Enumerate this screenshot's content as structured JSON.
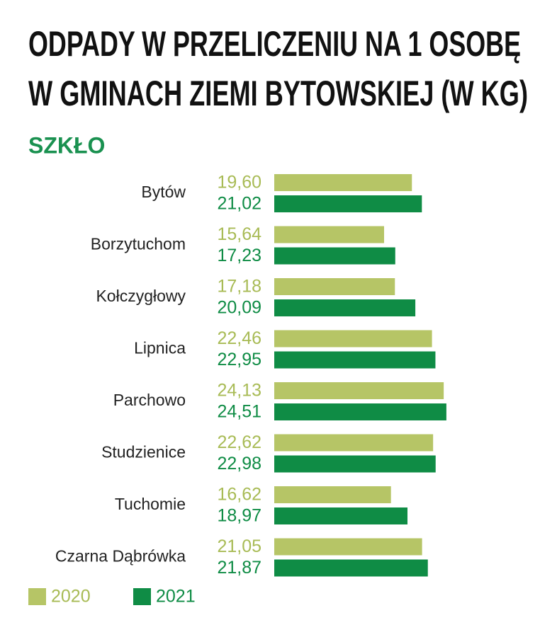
{
  "chart_data": {
    "type": "bar",
    "orientation": "horizontal",
    "title": [
      "ODPADY W PRZELICZENIU NA 1 OSOBĘ",
      "W GMINACH ZIEMI BYTOWSKIEJ (W KG)"
    ],
    "subtitle": "SZKŁO",
    "categories": [
      "Bytów",
      "Borzytuchom",
      "Kołczygłowy",
      "Lipnica",
      "Parchowo",
      "Studzienice",
      "Tuchomie",
      "Czarna Dąbrówka"
    ],
    "series": [
      {
        "name": "2020",
        "color": "#b6c566",
        "label_color": "#a8bb55",
        "values": [
          19.6,
          15.64,
          17.18,
          22.46,
          24.13,
          22.62,
          16.62,
          21.05
        ],
        "value_labels": [
          "19,60",
          "15,64",
          "17,18",
          "22,46",
          "24,13",
          "22,62",
          "16,62",
          "21,05"
        ]
      },
      {
        "name": "2021",
        "color": "#0f8c45",
        "label_color": "#0f8c45",
        "values": [
          21.02,
          17.23,
          20.09,
          22.95,
          24.51,
          22.98,
          18.97,
          21.87
        ],
        "value_labels": [
          "21,02",
          "17,23",
          "20,09",
          "22,95",
          "24,51",
          "22,98",
          "18,97",
          "21,87"
        ]
      }
    ]
  }
}
